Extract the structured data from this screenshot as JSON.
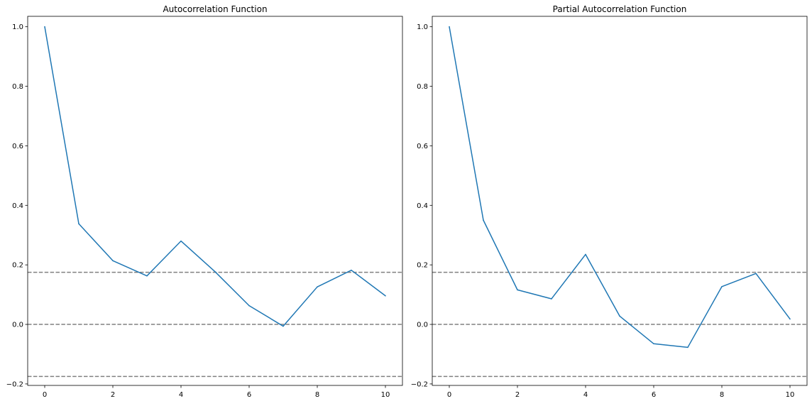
{
  "chart_data": [
    {
      "type": "line",
      "title": "Autocorrelation Function",
      "xlabel": "",
      "ylabel": "",
      "x": [
        0,
        1,
        2,
        3,
        4,
        5,
        6,
        7,
        8,
        9,
        10
      ],
      "series": [
        {
          "values": [
            1.0,
            0.338,
            0.214,
            0.163,
            0.28,
            0.177,
            0.063,
            -0.006,
            0.126,
            0.182,
            0.096
          ],
          "color": "#1f77b4"
        }
      ],
      "reference_lines": [
        {
          "y": 0.175,
          "style": "dashed",
          "color": "#808080"
        },
        {
          "y": 0.0,
          "style": "dashed",
          "color": "#808080"
        },
        {
          "y": -0.175,
          "style": "dashed",
          "color": "#808080"
        }
      ],
      "xlim": [
        -0.5,
        10.5
      ],
      "ylim": [
        -0.205,
        1.035
      ],
      "xticks": [
        0,
        2,
        4,
        6,
        8,
        10
      ],
      "xtick_labels": [
        "0",
        "2",
        "4",
        "6",
        "8",
        "10"
      ],
      "yticks": [
        -0.2,
        0.0,
        0.2,
        0.4,
        0.6,
        0.8,
        1.0
      ],
      "ytick_labels": [
        "−0.2",
        "0.0",
        "0.2",
        "0.4",
        "0.6",
        "0.8",
        "1.0"
      ],
      "grid": false,
      "legend": "none"
    },
    {
      "type": "line",
      "title": "Partial Autocorrelation Function",
      "xlabel": "",
      "ylabel": "",
      "x": [
        0,
        1,
        2,
        3,
        4,
        5,
        6,
        7,
        8,
        9,
        10
      ],
      "series": [
        {
          "values": [
            1.0,
            0.35,
            0.116,
            0.086,
            0.235,
            0.028,
            -0.065,
            -0.077,
            0.127,
            0.171,
            0.018
          ],
          "color": "#1f77b4"
        }
      ],
      "reference_lines": [
        {
          "y": 0.175,
          "style": "dashed",
          "color": "#808080"
        },
        {
          "y": 0.0,
          "style": "dashed",
          "color": "#808080"
        },
        {
          "y": -0.175,
          "style": "dashed",
          "color": "#808080"
        }
      ],
      "xlim": [
        -0.5,
        10.5
      ],
      "ylim": [
        -0.205,
        1.035
      ],
      "xticks": [
        0,
        2,
        4,
        6,
        8,
        10
      ],
      "xtick_labels": [
        "0",
        "2",
        "4",
        "6",
        "8",
        "10"
      ],
      "yticks": [
        -0.2,
        0.0,
        0.2,
        0.4,
        0.6,
        0.8,
        1.0
      ],
      "ytick_labels": [
        "−0.2",
        "0.0",
        "0.2",
        "0.4",
        "0.6",
        "0.8",
        "1.0"
      ],
      "grid": false,
      "legend": "none"
    }
  ]
}
